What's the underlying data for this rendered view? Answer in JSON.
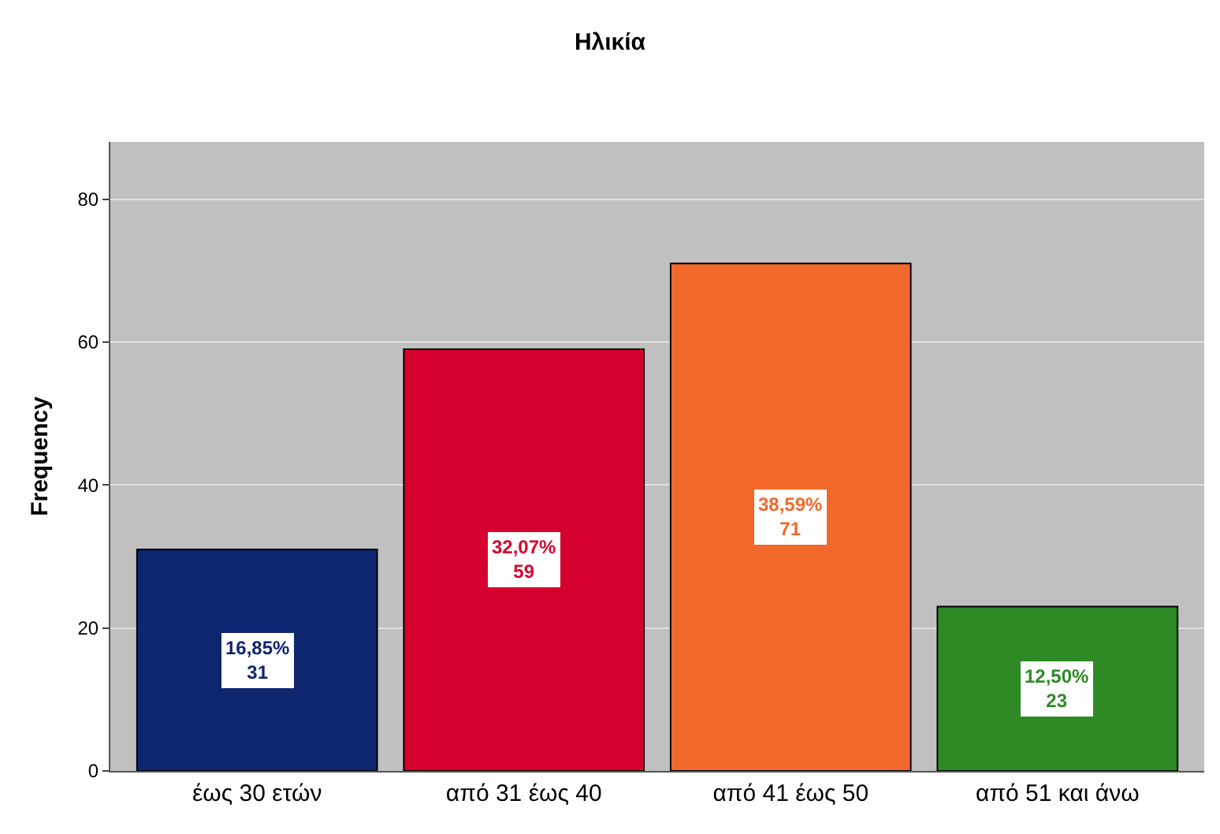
{
  "chart_data": {
    "type": "bar",
    "title": "Ηλικία",
    "ylabel": "Frequency",
    "categories": [
      "έως 30 ετών",
      "από 31 έως 40",
      "από 41 έως 50",
      "από 51 και άνω"
    ],
    "values": [
      31,
      59,
      71,
      23
    ],
    "colors": [
      "#0f2670",
      "#d6002e",
      "#f2692b",
      "#2e8a25"
    ],
    "value_labels": [
      "16,85%\n31",
      "32,07%\n59",
      "38,59%\n71",
      "12,50%\n23"
    ],
    "ylim": [
      0,
      88
    ],
    "yticks": [
      0,
      20,
      40,
      60,
      80
    ],
    "grid": "y"
  }
}
